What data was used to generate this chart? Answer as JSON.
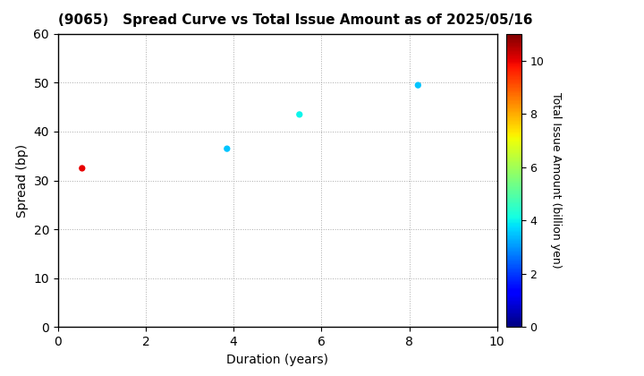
{
  "title": "(9065)   Spread Curve vs Total Issue Amount as of 2025/05/16",
  "xlabel": "Duration (years)",
  "ylabel": "Spread (bp)",
  "colorbar_label": "Total Issue Amount (billion yen)",
  "xlim": [
    0,
    10
  ],
  "ylim": [
    0,
    60
  ],
  "xticks": [
    0,
    2,
    4,
    6,
    8,
    10
  ],
  "yticks": [
    0,
    10,
    20,
    30,
    40,
    50,
    60
  ],
  "points": [
    {
      "duration": 0.55,
      "spread": 32.5,
      "amount": 10.0
    },
    {
      "duration": 3.85,
      "spread": 36.5,
      "amount": 3.5
    },
    {
      "duration": 5.5,
      "spread": 43.5,
      "amount": 4.0
    },
    {
      "duration": 8.2,
      "spread": 49.5,
      "amount": 3.5
    }
  ],
  "colormap": "jet",
  "clim": [
    0,
    11
  ],
  "marker_size": 18,
  "background_color": "#ffffff",
  "grid_color": "#aaaaaa",
  "grid_style": "dotted"
}
